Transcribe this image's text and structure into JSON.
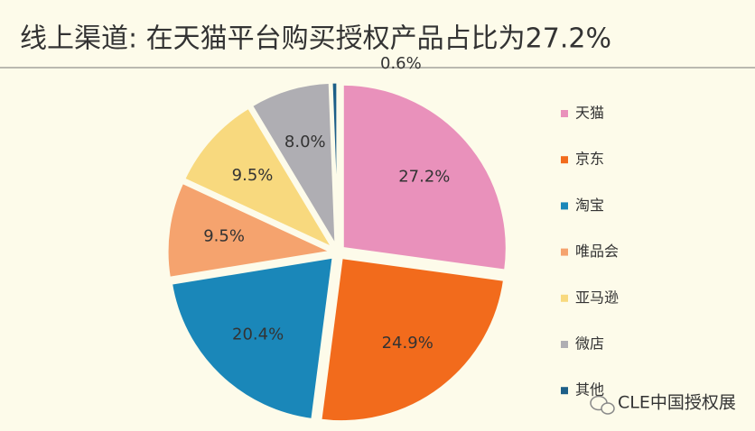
{
  "chart_data": {
    "type": "pie",
    "title": "线上渠道: 在天猫平台购买授权产品占比为27.2%",
    "categories": [
      "天猫",
      "京东",
      "淘宝",
      "唯品会",
      "亚马逊",
      "微店",
      "其他"
    ],
    "values": [
      27.2,
      24.9,
      20.4,
      9.5,
      9.5,
      8.0,
      0.6
    ],
    "value_labels": [
      "27.2%",
      "24.9%",
      "20.4%",
      "9.5%",
      "9.5%",
      "8.0%",
      "0.6%"
    ],
    "colors": [
      "#e991bb",
      "#f26b1c",
      "#1a87b9",
      "#f5a36e",
      "#f8d97e",
      "#afaeb3",
      "#1d5f88"
    ],
    "legend": "right"
  },
  "watermark": "CLE中国授权展"
}
